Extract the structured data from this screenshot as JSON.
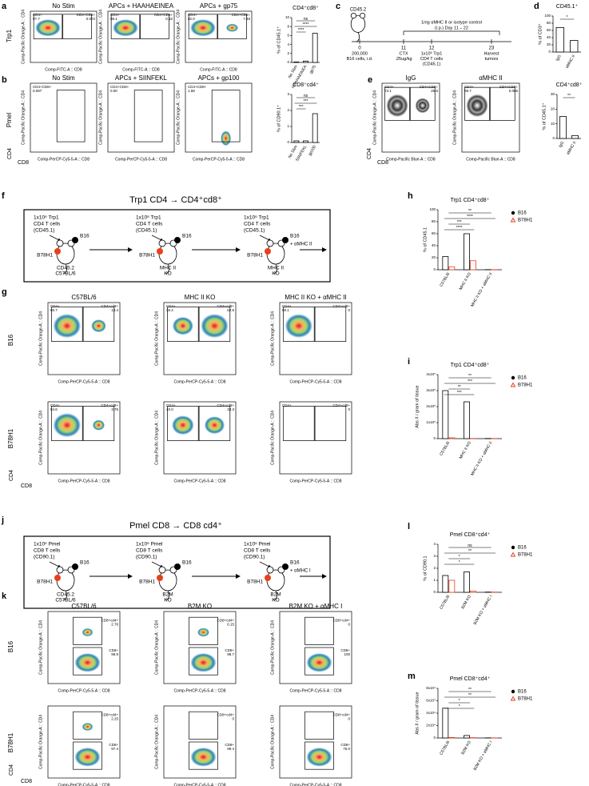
{
  "panel_letters": [
    "a",
    "b",
    "c",
    "d",
    "e",
    "f",
    "g",
    "h",
    "i",
    "j",
    "k",
    "l",
    "m"
  ],
  "side_labels": [
    "Trp1",
    "Pmel",
    "B16",
    "B78H1",
    "B16",
    "B78H1"
  ],
  "axis_markers": [
    {
      "vertical": "CD4",
      "horizontal": "CD8"
    },
    {
      "vertical": "CD4",
      "horizontal": "CD8"
    },
    {
      "vertical": "CD4",
      "horizontal": "CD8"
    },
    {
      "vertical": "CD4",
      "horizontal": "CD8"
    }
  ],
  "flow": [
    {
      "xlabel": "Comp-FITC-A :: CD8",
      "ylabel": "Comp-Pacific Orange-A :: CD4",
      "plots": [
        {
          "title": "No Stim",
          "gates": [
            {
              "name": "CD4+",
              "value": "97.7"
            },
            {
              "name": "CD4+CD8+",
              "value": "0.072"
            }
          ]
        },
        {
          "title": "APCs + HAAHAEINEA",
          "gates": [
            {
              "name": "CD4+",
              "value": "98.1"
            },
            {
              "name": "CD4+CD8+",
              "value": "0.32"
            }
          ]
        },
        {
          "title": "APCs + gp75",
          "gates": [
            {
              "name": "CD4+",
              "value": "92.0"
            },
            {
              "name": "CD4+CD8+",
              "value": "7.46"
            }
          ]
        }
      ]
    },
    {
      "xlabel": "Comp-PerCP-Cy5-5-A :: CD8",
      "ylabel": "Comp-Pacific Orange-A :: CD4",
      "plots": [
        {
          "title": "No Stim",
          "gates": [
            {
              "name": "CD4+CD8+",
              "value": "0.097"
            }
          ]
        },
        {
          "title": "APCs + SIINFEKL",
          "gates": [
            {
              "name": "CD4+CD8+",
              "value": "0.00"
            }
          ]
        },
        {
          "title": "APCs + gp100",
          "gates": [
            {
              "name": "CD4+CD8+",
              "value": "1.68"
            }
          ]
        }
      ]
    },
    {
      "xlabel": "Comp-Pacific Blue-A :: CD8",
      "ylabel": "Comp-Pacific Orange-A :: CD4",
      "plots": [
        {
          "title": "IgG",
          "gates": [
            {
              "name": "CD4+",
              "value": "73.1"
            },
            {
              "name": "CD4+CD8+",
              "value": "26.6"
            }
          ]
        },
        {
          "title": "αMHC II",
          "gates": [
            {
              "name": "CD4+",
              "value": "99.7"
            },
            {
              "name": "CD4+CD8+",
              "value": "0.086"
            }
          ]
        }
      ]
    },
    {
      "xlabel": "Comp-PerCP-Cy5-5-A :: CD8",
      "ylabel": "Comp-Pacific Orange-A :: CD4",
      "plots": [
        {
          "title": "C57BL/6",
          "gates": [
            {
              "name": "CD4+",
              "value": "85.7"
            },
            {
              "name": "CD4+cd8+",
              "value": "13.4"
            }
          ]
        },
        {
          "title": "MHC II KO",
          "gates": [
            {
              "name": "CD4+",
              "value": "35.4"
            },
            {
              "name": "CD4+cd8+",
              "value": "62.5"
            }
          ]
        },
        {
          "title": "MHC II KO + αMHC II",
          "gates": [
            {
              "name": "CD4+",
              "value": "59.1"
            },
            {
              "name": "CD4+cd8+",
              "value": "0"
            }
          ]
        },
        {
          "gates": [
            {
              "name": "CD4+",
              "value": "94.6"
            },
            {
              "name": "CD4+cd8+",
              "value": "3.75"
            }
          ]
        },
        {
          "gates": [
            {
              "name": "CD4+",
              "value": "40.0"
            },
            {
              "name": "CD4+cd8+",
              "value": "33.3"
            }
          ]
        },
        {
          "gates": [
            {
              "name": "CD4+"
            },
            {
              "name": "CD4+cd8+",
              "value": "0"
            }
          ]
        }
      ]
    },
    {
      "xlabel": "Comp-PerCP-Cy5-5-A :: CD8",
      "ylabel": "Comp-Pacific Orange-A :: CD4",
      "plots": [
        {
          "title": "C57BL/6",
          "gates": [
            {
              "name": "CD8+cd4+",
              "value": "2.76"
            },
            {
              "name": "CD8+",
              "value": "96.9"
            }
          ]
        },
        {
          "title": "B2M KO",
          "gates": [
            {
              "name": "CD8+cd4+",
              "value": "6.15"
            },
            {
              "name": "CD8+",
              "value": "98.7"
            }
          ]
        },
        {
          "title": "B2M KO + αMHC I",
          "gates": [
            {
              "name": "CD8+cd4+",
              "value": "0"
            },
            {
              "name": "CD8+",
              "value": "100"
            }
          ]
        },
        {
          "gates": [
            {
              "name": "CD8+cd4+",
              "value": "2.25"
            },
            {
              "name": "CD8+",
              "value": "97.4"
            }
          ]
        },
        {
          "gates": [
            {
              "name": "CD8+cd4+",
              "value": "0"
            },
            {
              "name": "CD8+",
              "value": "99.4"
            }
          ]
        },
        {
          "gates": [
            {
              "name": "CD8+cd4+",
              "value": "0"
            },
            {
              "name": "CD8+",
              "value": "75.0"
            }
          ]
        }
      ]
    }
  ],
  "charts": [
    {
      "type": "bar",
      "title": "CD4⁺cd8⁺",
      "ylabel": "% of CD45.1⁺",
      "categories": [
        "No Stim",
        "HAAHAEINEA",
        "gp75"
      ],
      "series": [
        {
          "color": "#000000",
          "values": [
            0.1,
            0.3,
            6.5
          ]
        }
      ],
      "ylim": [
        0,
        10
      ],
      "yticks": [
        0,
        2,
        4,
        6,
        8,
        10
      ],
      "significance": [
        "ns",
        "****",
        "****"
      ]
    },
    {
      "type": "bar",
      "title": "CD8⁺cd4⁺",
      "ylabel": "% of CD90.1⁺",
      "categories": [
        "No Stim",
        "SIINFEKL",
        "gp100"
      ],
      "series": [
        {
          "color": "#000000",
          "values": [
            0.1,
            0.1,
            1.8
          ]
        }
      ],
      "ylim": [
        0,
        3
      ],
      "yticks": [
        0,
        1,
        2,
        3
      ],
      "significance": [
        "ns",
        "***",
        "***"
      ]
    },
    {
      "type": "bar",
      "title": "CD45.1⁺",
      "ylabel": "% of CD3⁺",
      "categories": [
        "IgG",
        "αMHC II"
      ],
      "series": [
        {
          "color": "#000000",
          "values": [
            68,
            32
          ]
        }
      ],
      "ylim": [
        0,
        100
      ],
      "yticks": [
        0,
        20,
        40,
        60,
        80,
        100
      ],
      "significance": [
        "*"
      ]
    },
    {
      "type": "bar",
      "title": "CD4⁺cd8⁺",
      "ylabel": "% of CD45.1⁺",
      "categories": [
        "IgG",
        "αMHC II"
      ],
      "series": [
        {
          "color": "#000000",
          "values": [
            15,
            2
          ]
        }
      ],
      "ylim": [
        0,
        30
      ],
      "yticks": [
        0,
        10,
        20,
        30
      ],
      "significance": [
        "**"
      ]
    },
    {
      "type": "bar",
      "title": "Trp1 CD4⁺cd8⁺",
      "ylabel": "% of CD45.1",
      "categories": [
        "C57BL/6",
        "MHC II KO",
        "MHC II KO + αMHC II"
      ],
      "series": [
        {
          "name": "B16",
          "color": "#000000",
          "values": [
            22,
            60,
            0.2
          ]
        },
        {
          "name": "B78H1",
          "color": "#e8401c",
          "values": [
            5,
            15,
            0.2
          ]
        }
      ],
      "ylim": [
        0,
        100
      ],
      "yticks": [
        0,
        20,
        40,
        60,
        80,
        100
      ],
      "significance": [
        "**",
        "****",
        "***",
        "****"
      ]
    },
    {
      "type": "bar",
      "title": "Trp1 CD4⁺cd8⁺",
      "ylabel": "Abs # / gram of tissue",
      "categories": [
        "C57BL/6",
        "MHC II KO",
        "MHC II KO + αMHC II"
      ],
      "series": [
        {
          "name": "B16",
          "color": "#000000",
          "values": [
            300000,
            230000,
            1000
          ]
        },
        {
          "name": "B78H1",
          "color": "#e8401c",
          "values": [
            5000,
            1000,
            1000
          ]
        }
      ],
      "ylim": [
        0,
        400000
      ],
      "yticks": [
        0,
        {
          "value": 100000,
          "label": "1x10⁵"
        },
        {
          "value": 200000,
          "label": "2x10⁵"
        },
        {
          "value": 300000,
          "label": "3x10⁵"
        },
        {
          "value": 400000,
          "label": "4x10⁵"
        }
      ],
      "significance": [
        "**",
        "***",
        "**",
        "***"
      ]
    },
    {
      "type": "bar",
      "title": "Pmel CD8⁺cd4⁺",
      "ylabel": "% of CD90.1",
      "categories": [
        "C57BL/6",
        "B2M KO",
        "B2M KO + αMHC I"
      ],
      "series": [
        {
          "name": "B16",
          "color": "#000000",
          "values": [
            1.4,
            1.7,
            0.02
          ]
        },
        {
          "name": "B78H1",
          "color": "#e8401c",
          "values": [
            1.0,
            0.1,
            0.02
          ]
        }
      ],
      "ylim": [
        0,
        4
      ],
      "yticks": [
        0,
        1,
        2,
        3,
        4
      ],
      "significance": [
        "ns",
        "**",
        "*",
        "*"
      ]
    },
    {
      "type": "bar",
      "title": "Pmel CD8⁺cd4⁺",
      "ylabel": "Abs # / gram of tissue",
      "categories": [
        "C57BL/6",
        "B2M KO",
        "B2M KO + αMHC I"
      ],
      "series": [
        {
          "name": "B16",
          "color": "#000000",
          "values": [
            48000,
            4000,
            200
          ]
        },
        {
          "name": "B78H1",
          "color": "#e8401c",
          "values": [
            800,
            500,
            200
          ]
        }
      ],
      "ylim": [
        0,
        80000
      ],
      "yticks": [
        0,
        {
          "value": 20000,
          "label": "2x10⁴"
        },
        {
          "value": 40000,
          "label": "4x10⁴"
        },
        {
          "value": 60000,
          "label": "6x10⁴"
        },
        {
          "value": 80000,
          "label": "8x10⁴"
        }
      ],
      "significance": [
        "**",
        "**",
        "*",
        "*"
      ]
    }
  ],
  "timeline": {
    "mouse_label": "CD45.2",
    "days": [
      "0",
      "11",
      "12",
      "23"
    ],
    "events": [
      [
        "200,000",
        "B16 cells, i.d."
      ],
      [
        "CTX",
        ".25ug/kg"
      ],
      [
        "1x10⁶ Trp1",
        "CD4 T cells",
        "(CD45.1)"
      ],
      [
        "Harvest",
        "tumors"
      ]
    ],
    "treatment": [
      "1mg αMHC II or isotype control",
      "(i.p.) Day 11 – 22"
    ]
  },
  "schemes": [
    {
      "title": "Trp1 CD4 → CD4⁺cd8⁺",
      "stages": [
        {
          "lines": [
            "1x10⁶ Trp1",
            "CD4 T cells",
            "(CD45.1)"
          ],
          "tumor_top": "B16",
          "tumor_left": "B78H1",
          "mouse": [
            "CD45.2",
            "C57BL/6"
          ]
        },
        {
          "lines": [
            "1x10⁶ Trp1",
            "CD4 T cells",
            "(CD45.1)"
          ],
          "tumor_top": "B16",
          "tumor_left": "B78H1",
          "mouse": [
            "MHC II",
            "KO"
          ]
        },
        {
          "lines": [
            "1x10⁶ Trp1",
            "CD4 T cells",
            "(CD45.1)"
          ],
          "tumor_top": "B16",
          "tumor_left": "B78H1",
          "mouse": [
            "MHC II",
            "KO"
          ],
          "extra": "+ αMHC II"
        }
      ]
    },
    {
      "title": "Pmel CD8 → CD8 cd4⁺",
      "stages": [
        {
          "lines": [
            "1x10⁶ Pmel",
            "CD8 T cells",
            "(CD90.1)"
          ],
          "tumor_top": "B16",
          "tumor_left": "B78H1",
          "mouse": [
            "CD45.2",
            "C57BL/6"
          ]
        },
        {
          "lines": [
            "1x10⁶ Pmel",
            "CD8 T cells",
            "(CD90.1)"
          ],
          "tumor_top": "B16",
          "tumor_left": "B78H1",
          "mouse": [
            "B2M",
            "KO"
          ]
        },
        {
          "lines": [
            "1x10⁶ Pmel",
            "CD8 T cells",
            "(CD90.1)"
          ],
          "tumor_top": "B16",
          "tumor_left": "B78H1",
          "mouse": [
            "B2M",
            "KO"
          ],
          "extra": "+ αMHC I"
        }
      ]
    }
  ]
}
